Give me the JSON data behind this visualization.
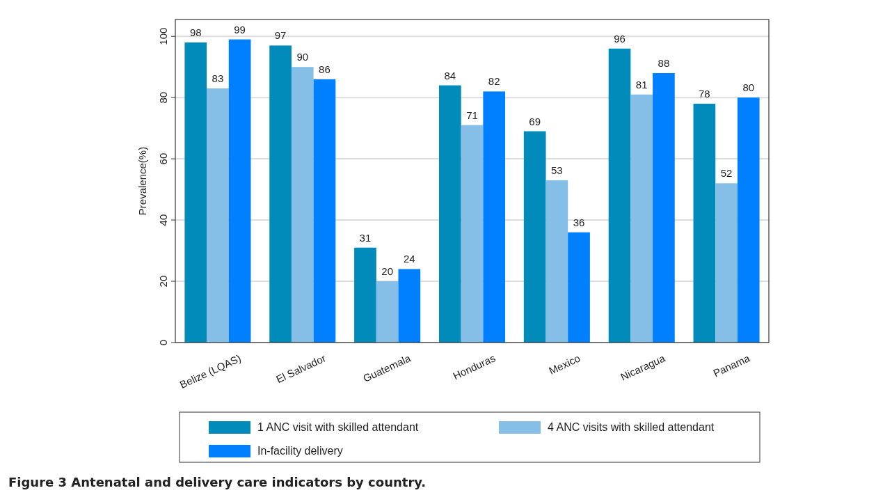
{
  "chart_data": {
    "type": "bar",
    "title": "Figure 3 Antenatal and delivery care indicators by country.",
    "ylabel": "Prevalence(%)",
    "categories": [
      "Belize (LQAS)",
      "El Salvador",
      "Guatemala",
      "Honduras",
      "Mexico",
      "Nicaragua",
      "Panama"
    ],
    "series": [
      {
        "name": "1 ANC visit with skilled attendant",
        "color": "#008bbb",
        "values": [
          98,
          97,
          31,
          84,
          69,
          96,
          78
        ]
      },
      {
        "name": "4 ANC visits with skilled attendant",
        "color": "#85bfe8",
        "values": [
          83,
          90,
          20,
          71,
          53,
          81,
          52
        ]
      },
      {
        "name": "In-facility delivery",
        "color": "#0080ff",
        "values": [
          99,
          86,
          24,
          82,
          36,
          88,
          80
        ]
      }
    ],
    "ylim": [
      0,
      105.5
    ],
    "yticks": [
      0,
      20,
      40,
      60,
      80,
      100
    ],
    "grid": "y",
    "legend": "bottom",
    "data_labels": true
  }
}
